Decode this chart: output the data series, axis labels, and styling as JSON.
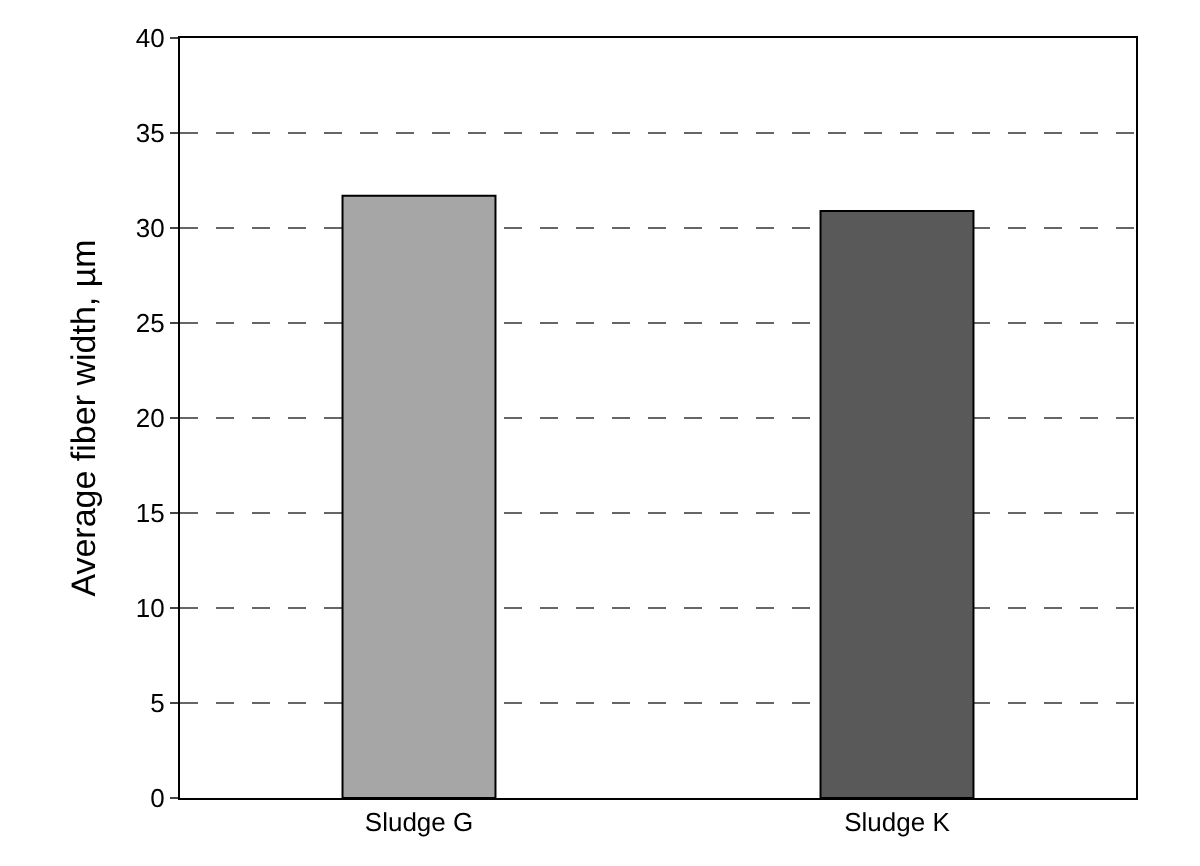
{
  "chart_data": {
    "type": "bar",
    "categories": [
      "Sludge G",
      "Sludge K"
    ],
    "values": [
      31.7,
      30.9
    ],
    "colors": [
      "#a6a6a6",
      "#595959"
    ],
    "ylabel": "Average fiber width, µm",
    "ylim": [
      0,
      40
    ],
    "yticks": [
      0,
      5,
      10,
      15,
      20,
      25,
      30,
      35,
      40
    ],
    "grid": "y"
  }
}
